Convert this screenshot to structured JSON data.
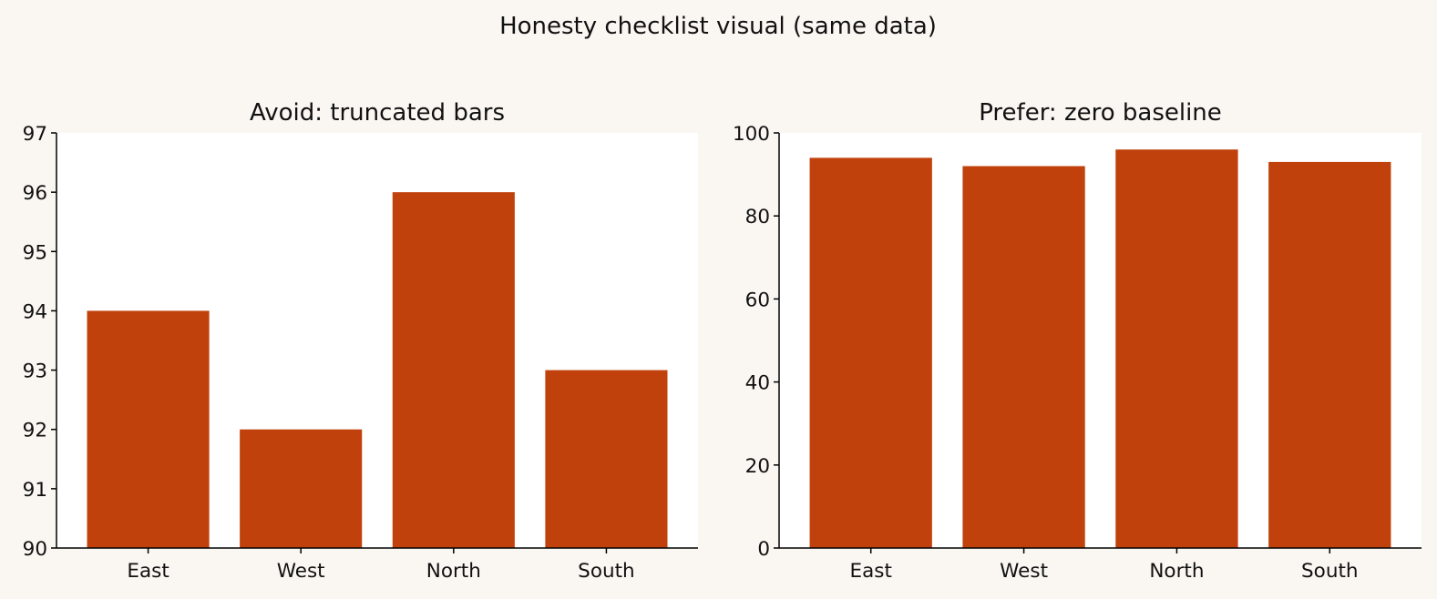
{
  "figure": {
    "suptitle": "Honesty checklist visual (same data)",
    "background_color": "#faf7f2",
    "plot_background_color": "#ffffff"
  },
  "chart_data": [
    {
      "type": "bar",
      "title": "Avoid: truncated bars",
      "categories": [
        "East",
        "West",
        "North",
        "South"
      ],
      "values": [
        94,
        92,
        96,
        93
      ],
      "ylim": [
        90,
        97
      ],
      "yticks": [
        90,
        91,
        92,
        93,
        94,
        95,
        96,
        97
      ],
      "xlabel": "",
      "ylabel": "",
      "bar_color": "#c0410c",
      "grid": false,
      "legend": "none"
    },
    {
      "type": "bar",
      "title": "Prefer: zero baseline",
      "categories": [
        "East",
        "West",
        "North",
        "South"
      ],
      "values": [
        94,
        92,
        96,
        93
      ],
      "ylim": [
        0,
        100
      ],
      "yticks": [
        0,
        20,
        40,
        60,
        80,
        100
      ],
      "xlabel": "",
      "ylabel": "",
      "bar_color": "#c0410c",
      "grid": false,
      "legend": "none"
    }
  ]
}
